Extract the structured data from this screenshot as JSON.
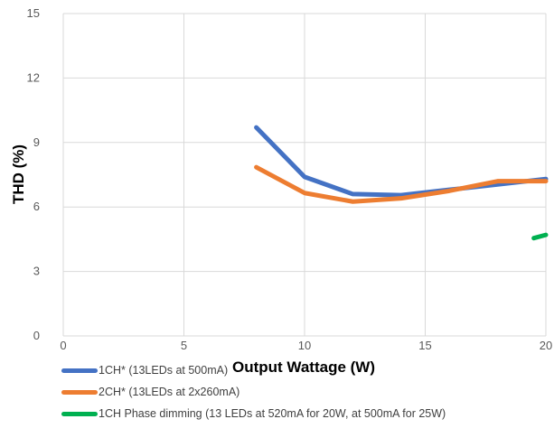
{
  "chart_data": {
    "type": "line",
    "xlabel": "Output Wattage (W)",
    "ylabel": "THD (%)",
    "xlim": [
      0,
      20
    ],
    "ylim": [
      0,
      15
    ],
    "xticks": [
      0,
      5,
      10,
      15,
      20
    ],
    "yticks": [
      0,
      3,
      6,
      9,
      12,
      15
    ],
    "grid": true,
    "legend_position": "bottom-left",
    "series": [
      {
        "name": "1CH* (13LEDs at 500mA)",
        "color": "#4472C4",
        "x": [
          8,
          10,
          12,
          14,
          16,
          18,
          20
        ],
        "y": [
          9.7,
          7.4,
          6.6,
          6.55,
          6.8,
          7.05,
          7.3
        ]
      },
      {
        "name": "2CH* (13LEDs at 2x260mA)",
        "color": "#ED7D31",
        "x": [
          8,
          10,
          12,
          14,
          16,
          18,
          20
        ],
        "y": [
          7.85,
          6.65,
          6.25,
          6.4,
          6.75,
          7.2,
          7.2
        ]
      },
      {
        "name": "1CH Phase dimming (13 LEDs at 520mA for 20W, at 500mA for 25W)",
        "color": "#00B050",
        "x": [
          19.5,
          20
        ],
        "y": [
          4.55,
          4.7
        ]
      }
    ]
  }
}
